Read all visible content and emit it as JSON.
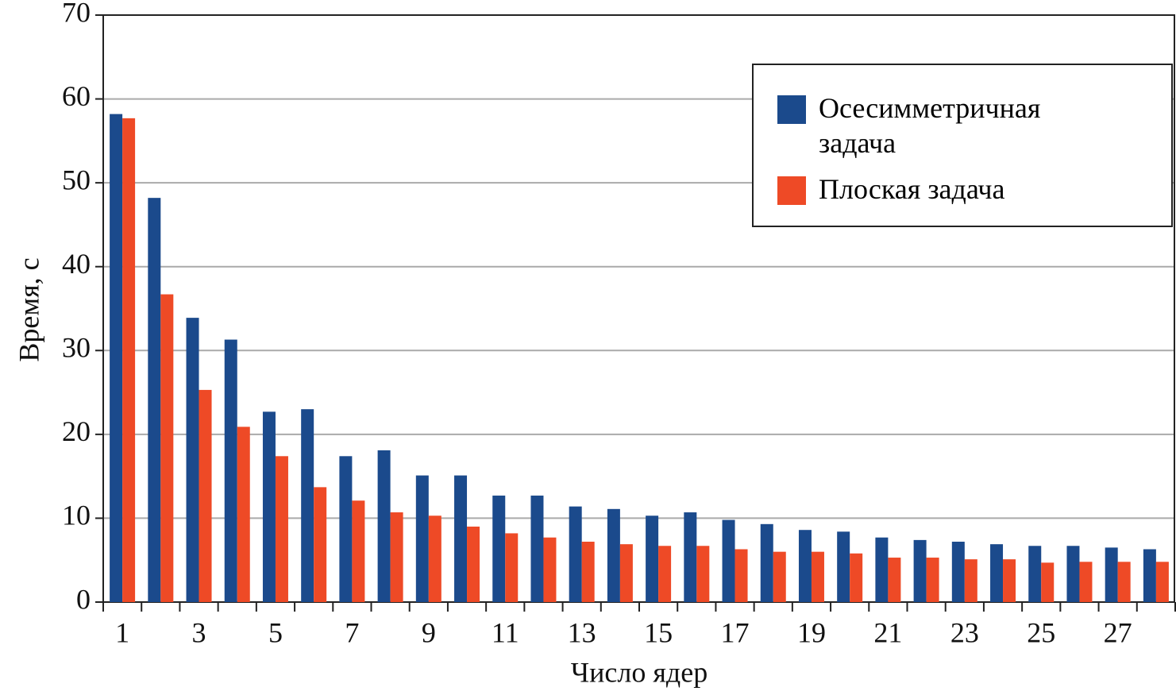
{
  "chart_data": {
    "type": "bar",
    "xlabel": "Число ядер",
    "ylabel": "Время, с",
    "categories": [
      "1",
      null,
      "3",
      null,
      "5",
      null,
      "7",
      null,
      "9",
      null,
      "11",
      null,
      "13",
      null,
      "15",
      null,
      "17",
      null,
      "19",
      null,
      "21",
      null,
      "23",
      null,
      "25",
      null,
      "27",
      null
    ],
    "series": [
      {
        "name": "Осесимметричная задача",
        "color": "#1b4a8c",
        "values": [
          58.2,
          48.2,
          33.9,
          31.3,
          22.7,
          23.0,
          17.4,
          18.1,
          15.1,
          15.1,
          12.7,
          12.7,
          11.4,
          11.1,
          10.3,
          10.7,
          9.8,
          9.3,
          8.6,
          8.4,
          7.7,
          7.4,
          7.2,
          6.9,
          6.7,
          6.7,
          6.5,
          6.3
        ]
      },
      {
        "name": "Плоская задача",
        "color": "#ee4a26",
        "values": [
          57.7,
          36.7,
          25.3,
          20.9,
          17.4,
          13.7,
          12.1,
          10.7,
          10.3,
          9.0,
          8.2,
          7.7,
          7.2,
          6.9,
          6.7,
          6.7,
          6.3,
          6.0,
          6.0,
          5.8,
          5.3,
          5.3,
          5.1,
          5.1,
          4.7,
          4.8,
          4.8,
          4.8
        ]
      }
    ],
    "ylim": [
      0,
      70
    ],
    "yticks": [
      0,
      10,
      20,
      30,
      40,
      50,
      60,
      70
    ],
    "grid": true,
    "legend": "upper right"
  }
}
